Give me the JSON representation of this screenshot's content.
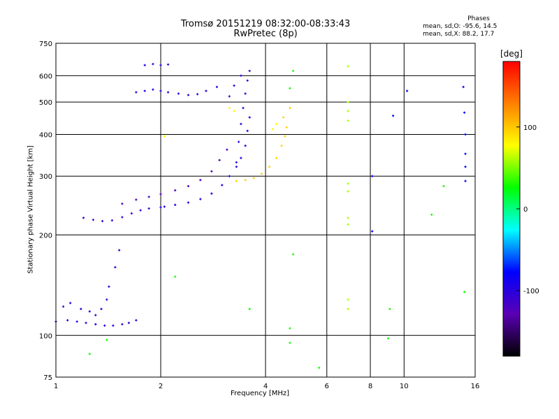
{
  "title": {
    "line1": "Tromsø 20151219 08:32:00-08:33:43",
    "line2": "RwPretec (8p)"
  },
  "phases_box": {
    "heading": "Phases",
    "line_o": "mean, sd,O: -95.6, 14.5",
    "line_x": "mean, sd,X:  88.2, 17.7"
  },
  "chart_data": {
    "type": "scatter",
    "xlabel": "Frequency [MHz]",
    "ylabel": "Stationary phase Virtual Height [km]",
    "x_scale": "log",
    "y_scale": "log",
    "xlim": [
      1,
      16
    ],
    "ylim": [
      75,
      750
    ],
    "x_ticks": [
      1,
      2,
      4,
      6,
      8,
      10,
      16
    ],
    "y_ticks": [
      75,
      100,
      200,
      300,
      400,
      500,
      600,
      750
    ],
    "grid": true,
    "colorbar": {
      "unit": "[deg]",
      "range": [
        -180,
        180
      ],
      "ticks": [
        100,
        0,
        -100
      ],
      "colormap": [
        "#000000",
        "#5a00b4",
        "#0000ff",
        "#00ffff",
        "#00ff00",
        "#ffff00",
        "#ff8000",
        "#ff0000"
      ]
    },
    "series": [
      {
        "points": [
          [
            1.0,
            110
          ],
          [
            1.08,
            111
          ],
          [
            1.15,
            110
          ],
          [
            1.22,
            109
          ],
          [
            1.3,
            108
          ],
          [
            1.38,
            107
          ],
          [
            1.46,
            107
          ],
          [
            1.55,
            108
          ],
          [
            1.62,
            109
          ],
          [
            1.7,
            111
          ]
        ],
        "phase": -100
      },
      {
        "points": [
          [
            1.05,
            122
          ],
          [
            1.1,
            125
          ],
          [
            1.18,
            120
          ],
          [
            1.25,
            118
          ],
          [
            1.35,
            120
          ],
          [
            1.42,
            140
          ],
          [
            1.48,
            160
          ],
          [
            1.52,
            180
          ],
          [
            1.4,
            128
          ],
          [
            1.3,
            115
          ]
        ],
        "phase": -105
      },
      {
        "points": [
          [
            1.2,
            225
          ],
          [
            1.28,
            222
          ],
          [
            1.36,
            220
          ],
          [
            1.45,
            221
          ],
          [
            1.55,
            226
          ],
          [
            1.65,
            232
          ],
          [
            1.75,
            237
          ],
          [
            1.85,
            240
          ],
          [
            2.0,
            242
          ]
        ],
        "phase": -110
      },
      {
        "points": [
          [
            2.05,
            243
          ],
          [
            2.2,
            246
          ],
          [
            2.4,
            250
          ],
          [
            2.6,
            256
          ],
          [
            2.8,
            266
          ],
          [
            3.0,
            282
          ],
          [
            3.15,
            300
          ],
          [
            3.3,
            320
          ],
          [
            3.4,
            340
          ],
          [
            3.5,
            370
          ],
          [
            3.55,
            410
          ],
          [
            3.6,
            450
          ]
        ],
        "phase": -95
      },
      {
        "points": [
          [
            1.55,
            248
          ],
          [
            1.7,
            255
          ],
          [
            1.85,
            260
          ],
          [
            2.0,
            265
          ],
          [
            2.2,
            272
          ],
          [
            2.4,
            280
          ],
          [
            2.6,
            292
          ],
          [
            2.8,
            310
          ],
          [
            2.95,
            335
          ],
          [
            3.1,
            360
          ]
        ],
        "phase": -120
      },
      {
        "points": [
          [
            3.3,
            330
          ],
          [
            3.35,
            380
          ],
          [
            3.4,
            430
          ],
          [
            3.45,
            480
          ],
          [
            3.5,
            530
          ],
          [
            3.55,
            580
          ],
          [
            3.6,
            620
          ],
          [
            3.4,
            600
          ],
          [
            3.25,
            560
          ],
          [
            3.15,
            520
          ]
        ],
        "phase": -110
      },
      {
        "points": [
          [
            1.7,
            535
          ],
          [
            1.8,
            540
          ],
          [
            1.9,
            545
          ],
          [
            2.0,
            540
          ],
          [
            2.1,
            535
          ],
          [
            2.25,
            530
          ],
          [
            2.4,
            525
          ],
          [
            2.55,
            528
          ],
          [
            2.7,
            540
          ],
          [
            2.9,
            555
          ]
        ],
        "phase": -100
      },
      {
        "points": [
          [
            1.8,
            645
          ],
          [
            1.9,
            650
          ],
          [
            2.0,
            645
          ],
          [
            2.1,
            648
          ]
        ],
        "phase": -105
      },
      {
        "points": [
          [
            3.3,
            290
          ],
          [
            3.5,
            292
          ],
          [
            3.7,
            296
          ],
          [
            3.9,
            305
          ],
          [
            4.1,
            320
          ],
          [
            4.3,
            340
          ],
          [
            4.45,
            370
          ],
          [
            4.55,
            395
          ],
          [
            4.6,
            420
          ],
          [
            4.5,
            450
          ],
          [
            4.7,
            480
          ]
        ],
        "phase": 95
      },
      {
        "points": [
          [
            3.15,
            480
          ],
          [
            3.25,
            470
          ],
          [
            4.2,
            415
          ],
          [
            4.3,
            430
          ],
          [
            2.05,
            395
          ]
        ],
        "phase": 80
      },
      {
        "points": [
          [
            6.9,
            640
          ],
          [
            6.9,
            500
          ],
          [
            6.9,
            470
          ],
          [
            6.9,
            440
          ],
          [
            6.9,
            285
          ],
          [
            6.9,
            270
          ],
          [
            6.9,
            225
          ],
          [
            6.9,
            215
          ],
          [
            6.9,
            128
          ],
          [
            6.9,
            120
          ]
        ],
        "phase": 60
      },
      {
        "points": [
          [
            8.1,
            300
          ],
          [
            8.1,
            205
          ],
          [
            9.3,
            455
          ],
          [
            10.2,
            540
          ],
          [
            14.8,
            555
          ],
          [
            14.9,
            465
          ],
          [
            15.0,
            400
          ],
          [
            15.0,
            350
          ],
          [
            15.0,
            320
          ],
          [
            15.0,
            290
          ]
        ],
        "phase": -80
      },
      {
        "points": [
          [
            4.8,
            620
          ],
          [
            4.7,
            550
          ],
          [
            4.8,
            175
          ],
          [
            4.7,
            105
          ],
          [
            4.7,
            95
          ],
          [
            3.6,
            120
          ],
          [
            2.2,
            150
          ],
          [
            1.4,
            97
          ],
          [
            1.25,
            88
          ],
          [
            5.7,
            80
          ],
          [
            9.0,
            98
          ],
          [
            9.1,
            120
          ],
          [
            12.0,
            230
          ],
          [
            13.0,
            280
          ],
          [
            14.9,
            135
          ]
        ],
        "phase": 30
      }
    ]
  }
}
